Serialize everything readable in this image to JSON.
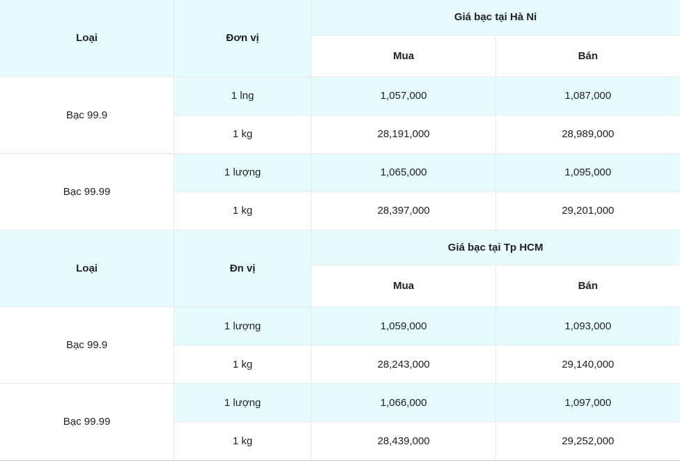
{
  "theme": {
    "accent_bg": "#e5fbfd",
    "row_bg": "#ffffff",
    "border_color": "#e9e9e9",
    "bottom_border_color": "#c6c9ca",
    "text_color": "#212121"
  },
  "tables": [
    {
      "col_type": "Loại",
      "col_unit": "Đơn vị",
      "group_header": "Giá bạc tại Hà Ni",
      "col_buy": "Mua",
      "col_sell": "Bán",
      "groups": [
        {
          "type": "Bạc 99.9",
          "rows": [
            {
              "unit": "1 lng",
              "buy": "1,057,000",
              "sell": "1,087,000"
            },
            {
              "unit": "1 kg",
              "buy": "28,191,000",
              "sell": "28,989,000"
            }
          ]
        },
        {
          "type": "Bạc 99.99",
          "rows": [
            {
              "unit": "1 lượng",
              "buy": "1,065,000",
              "sell": "1,095,000"
            },
            {
              "unit": "1 kg",
              "buy": "28,397,000",
              "sell": "29,201,000"
            }
          ]
        }
      ]
    },
    {
      "col_type": "Loại",
      "col_unit": "Đn vị",
      "group_header": "Giá bạc tại Tp HCM",
      "col_buy": "Mua",
      "col_sell": "Bán",
      "groups": [
        {
          "type": "Bạc 99.9",
          "rows": [
            {
              "unit": "1 lượng",
              "buy": "1,059,000",
              "sell": "1,093,000"
            },
            {
              "unit": "1 kg",
              "buy": "28,243,000",
              "sell": "29,140,000"
            }
          ]
        },
        {
          "type": "Bạc 99.99",
          "rows": [
            {
              "unit": "1 lượng",
              "buy": "1,066,000",
              "sell": "1,097,000"
            },
            {
              "unit": "1 kg",
              "buy": "28,439,000",
              "sell": "29,252,000"
            }
          ]
        }
      ]
    }
  ],
  "chart_data": [
    {
      "type": "table",
      "title": "Giá bạc tại Hà Ni",
      "columns": [
        "Loại",
        "Đơn vị",
        "Mua",
        "Bán"
      ],
      "rows": [
        [
          "Bạc 99.9",
          "1 lng",
          "1,057,000",
          "1,087,000"
        ],
        [
          "Bạc 99.9",
          "1 kg",
          "28,191,000",
          "28,989,000"
        ],
        [
          "Bạc 99.99",
          "1 lượng",
          "1,065,000",
          "1,095,000"
        ],
        [
          "Bạc 99.99",
          "1 kg",
          "28,397,000",
          "29,201,000"
        ]
      ]
    },
    {
      "type": "table",
      "title": "Giá bạc tại Tp HCM",
      "columns": [
        "Loại",
        "Đn vị",
        "Mua",
        "Bán"
      ],
      "rows": [
        [
          "Bạc 99.9",
          "1 lượng",
          "1,059,000",
          "1,093,000"
        ],
        [
          "Bạc 99.9",
          "1 kg",
          "28,243,000",
          "29,140,000"
        ],
        [
          "Bạc 99.99",
          "1 lượng",
          "1,066,000",
          "1,097,000"
        ],
        [
          "Bạc 99.99",
          "1 kg",
          "28,439,000",
          "29,252,000"
        ]
      ]
    }
  ]
}
